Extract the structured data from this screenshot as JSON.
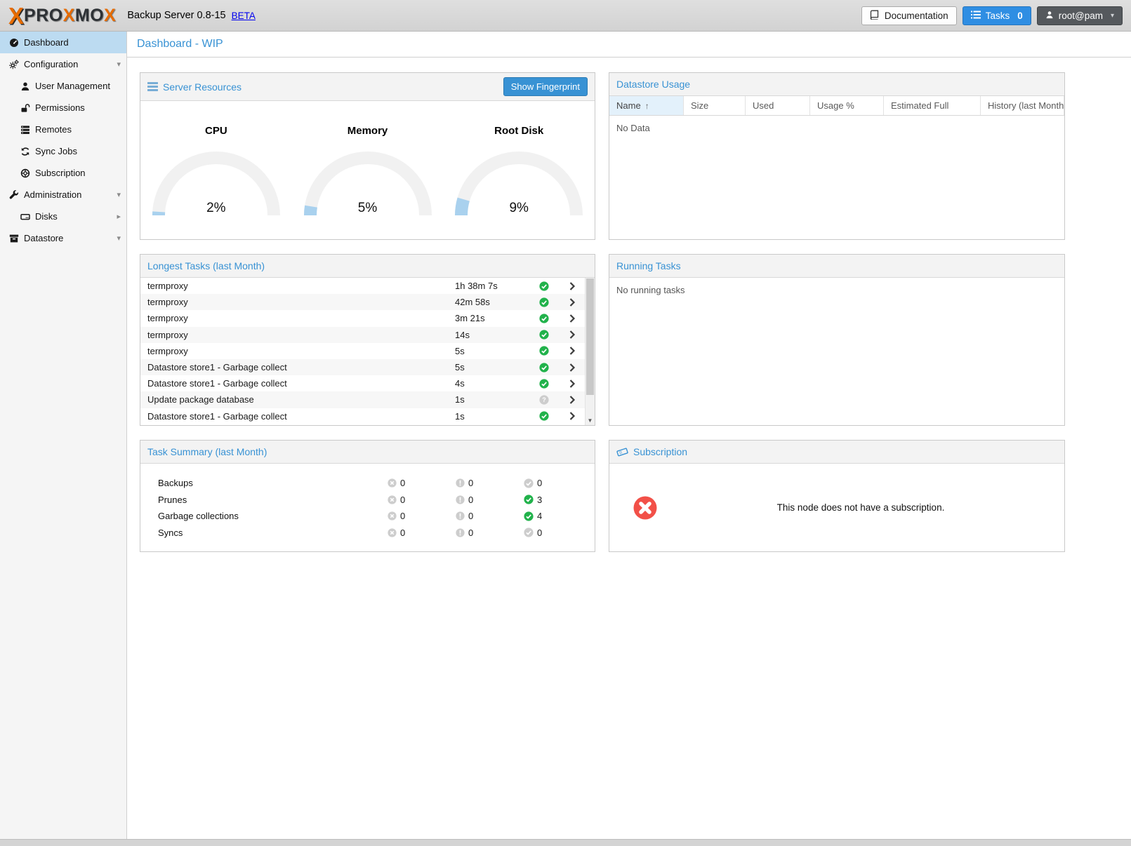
{
  "topbar": {
    "logo": {
      "mark": "X",
      "p1": "PRO",
      "x1": "X",
      "p2": "MO",
      "x2": "X"
    },
    "subtitle": "Backup Server 0.8-15",
    "beta_link": "BETA",
    "documentation_label": "Documentation",
    "tasks_label": "Tasks",
    "tasks_count": "0",
    "user_label": "root@pam"
  },
  "sidebar": {
    "items": [
      {
        "id": "dashboard",
        "label": "Dashboard",
        "icon": "tachometer",
        "selected": true,
        "indent": false,
        "arrow": ""
      },
      {
        "id": "configuration",
        "label": "Configuration",
        "icon": "gears",
        "selected": false,
        "indent": false,
        "arrow": "down"
      },
      {
        "id": "user-management",
        "label": "User Management",
        "icon": "user",
        "selected": false,
        "indent": true,
        "arrow": ""
      },
      {
        "id": "permissions",
        "label": "Permissions",
        "icon": "unlock",
        "selected": false,
        "indent": true,
        "arrow": ""
      },
      {
        "id": "remotes",
        "label": "Remotes",
        "icon": "remotes",
        "selected": false,
        "indent": true,
        "arrow": ""
      },
      {
        "id": "sync-jobs",
        "label": "Sync Jobs",
        "icon": "sync",
        "selected": false,
        "indent": true,
        "arrow": ""
      },
      {
        "id": "subscription",
        "label": "Subscription",
        "icon": "lifering",
        "selected": false,
        "indent": true,
        "arrow": ""
      },
      {
        "id": "administration",
        "label": "Administration",
        "icon": "wrench",
        "selected": false,
        "indent": false,
        "arrow": "down"
      },
      {
        "id": "disks",
        "label": "Disks",
        "icon": "hdd",
        "selected": false,
        "indent": true,
        "arrow": "right"
      },
      {
        "id": "datastore",
        "label": "Datastore",
        "icon": "archive",
        "selected": false,
        "indent": false,
        "arrow": "down"
      }
    ]
  },
  "main": {
    "title": "Dashboard - WIP"
  },
  "server_resources": {
    "title": "Server Resources",
    "button_label": "Show Fingerprint",
    "gauges": [
      {
        "label": "CPU",
        "percent": 2,
        "display": "2%"
      },
      {
        "label": "Memory",
        "percent": 5,
        "display": "5%"
      },
      {
        "label": "Root Disk",
        "percent": 9,
        "display": "9%"
      }
    ]
  },
  "datastore_usage": {
    "title": "Datastore Usage",
    "columns": [
      "Name",
      "Size",
      "Used",
      "Usage %",
      "Estimated Full",
      "History (last Month)"
    ],
    "sorted_column_index": 0,
    "sort_arrow": "↑",
    "empty_text": "No Data"
  },
  "longest_tasks": {
    "title": "Longest Tasks (last Month)",
    "rows": [
      {
        "name": "termproxy",
        "duration": "1h 38m 7s",
        "status": "ok"
      },
      {
        "name": "termproxy",
        "duration": "42m 58s",
        "status": "ok"
      },
      {
        "name": "termproxy",
        "duration": "3m 21s",
        "status": "ok"
      },
      {
        "name": "termproxy",
        "duration": "14s",
        "status": "ok"
      },
      {
        "name": "termproxy",
        "duration": "5s",
        "status": "ok"
      },
      {
        "name": "Datastore store1 - Garbage collect",
        "duration": "5s",
        "status": "ok"
      },
      {
        "name": "Datastore store1 - Garbage collect",
        "duration": "4s",
        "status": "ok"
      },
      {
        "name": "Update package database",
        "duration": "1s",
        "status": "unknown"
      },
      {
        "name": "Datastore store1 - Garbage collect",
        "duration": "1s",
        "status": "ok"
      }
    ]
  },
  "running_tasks": {
    "title": "Running Tasks",
    "empty_text": "No running tasks"
  },
  "task_summary": {
    "title": "Task Summary (last Month)",
    "rows": [
      {
        "label": "Backups",
        "error": 0,
        "warning": 0,
        "ok": 0
      },
      {
        "label": "Prunes",
        "error": 0,
        "warning": 0,
        "ok": 3
      },
      {
        "label": "Garbage collections",
        "error": 0,
        "warning": 0,
        "ok": 4
      },
      {
        "label": "Syncs",
        "error": 0,
        "warning": 0,
        "ok": 0
      }
    ]
  },
  "subscription": {
    "title": "Subscription",
    "message": "This node does not have a subscription."
  },
  "colors": {
    "accent_blue": "#3892d4",
    "tasks_button_blue": "#2f8ee3",
    "selected_item_blue": "#bcdbf1",
    "gauge_fill_blue": "#a9d1ee",
    "gauge_track_gray": "#f1f1f1",
    "ok_green": "#21b24b",
    "neutral_icon_gray": "#cdcdcd",
    "subscription_red": "#f25048",
    "brand_orange": "#e66b00"
  }
}
